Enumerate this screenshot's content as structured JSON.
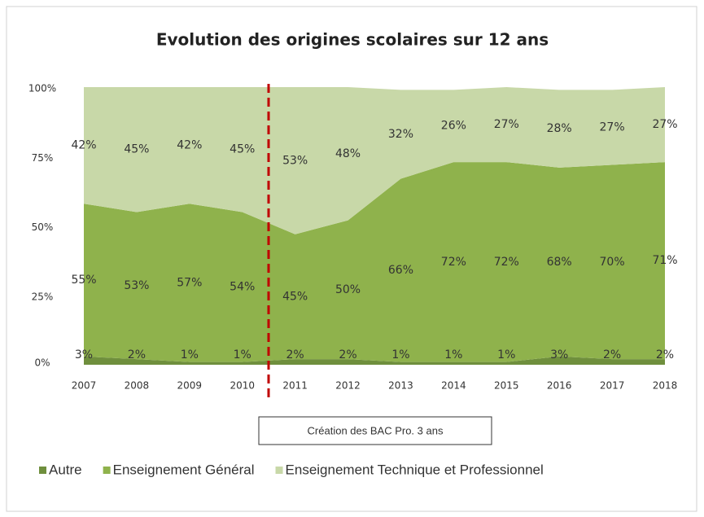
{
  "chart_data": {
    "type": "area",
    "stacked": true,
    "title": "Evolution des origines scolaires sur 12 ans",
    "categories": [
      "2007",
      "2008",
      "2009",
      "2010",
      "2011",
      "2012",
      "2013",
      "2014",
      "2015",
      "2016",
      "2017",
      "2018"
    ],
    "series": [
      {
        "name": "Autre",
        "color": "#6f8f3d",
        "values": [
          3,
          2,
          1,
          1,
          2,
          2,
          1,
          1,
          1,
          3,
          2,
          2
        ],
        "value_labels": [
          "3%",
          "2%",
          "1%",
          "1%",
          "2%",
          "2%",
          "1%",
          "1%",
          "1%",
          "3%",
          "2%",
          "2%"
        ]
      },
      {
        "name": "Enseignement Général",
        "color": "#8fb24c",
        "values": [
          55,
          53,
          57,
          54,
          45,
          50,
          66,
          72,
          72,
          68,
          70,
          71
        ],
        "value_labels": [
          "55%",
          "53%",
          "57%",
          "54%",
          "45%",
          "50%",
          "66%",
          "72%",
          "72%",
          "68%",
          "70%",
          "71%"
        ]
      },
      {
        "name": "Enseignement Technique et Professionnel",
        "color": "#c8d8a8",
        "values": [
          42,
          45,
          42,
          45,
          53,
          48,
          32,
          26,
          27,
          28,
          27,
          27
        ],
        "value_labels": [
          "42%",
          "45%",
          "42%",
          "45%",
          "53%",
          "48%",
          "32%",
          "26%",
          "27%",
          "28%",
          "27%",
          "27%"
        ]
      }
    ],
    "ylim": [
      0,
      100
    ],
    "yticks": [
      {
        "value": 0,
        "label": "0%"
      },
      {
        "value": 25,
        "label": "25%"
      },
      {
        "value": 50,
        "label": "50%"
      },
      {
        "value": 75,
        "label": "75%"
      },
      {
        "value": 100,
        "label": "100%"
      }
    ],
    "annotation": "Création des BAC Pro. 3 ans",
    "legend": "bottom"
  }
}
